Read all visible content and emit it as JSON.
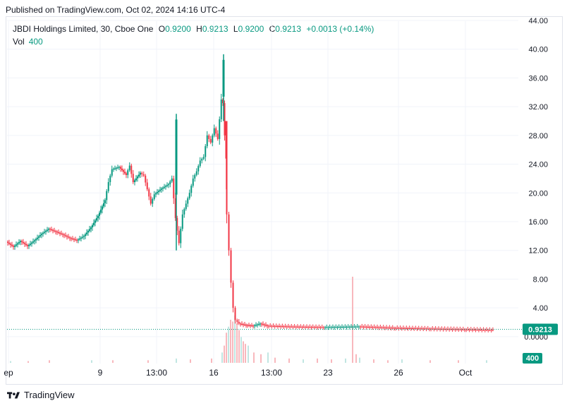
{
  "header": {
    "published": "Published on TradingView.com, Oct 02, 2024 14:16 UTC-4"
  },
  "legend": {
    "symbol": "JBDI Holdings Limited, 30, Cboe One",
    "open_label": "O",
    "open": "0.9200",
    "high_label": "H",
    "high": "0.9213",
    "low_label": "L",
    "low": "0.9200",
    "close_label": "C",
    "close": "0.9213",
    "change": "+0.0013 (+0.14%)",
    "vol_label": "Vol",
    "vol_value": "400"
  },
  "colors": {
    "up": "#089981",
    "down": "#f23645",
    "vol_up": "#b2dfdb",
    "vol_down": "#f7a7ad",
    "grid": "#f0f3fa"
  },
  "chart_data": {
    "type": "candlestick",
    "y_ticks": [
      "44.00",
      "40.00",
      "36.00",
      "32.00",
      "28.00",
      "24.00",
      "20.00",
      "16.00",
      "12.00",
      "8.00",
      "4.00",
      "0.0000"
    ],
    "ylim": [
      -1.0,
      44.0
    ],
    "x_ticks": [
      "ep",
      "9",
      "13:00",
      "16",
      "13:00",
      "23",
      "26",
      "Oct"
    ],
    "last_price_label": "0.9213",
    "volume_label": "400",
    "price_path": [
      [
        0,
        13.2
      ],
      [
        10,
        12.5
      ],
      [
        20,
        13.3
      ],
      [
        30,
        12.6
      ],
      [
        40,
        13.4
      ],
      [
        50,
        14.3
      ],
      [
        60,
        15.0
      ],
      [
        70,
        14.6
      ],
      [
        80,
        14.2
      ],
      [
        90,
        13.7
      ],
      [
        100,
        13.4
      ],
      [
        110,
        14.0
      ],
      [
        120,
        15.2
      ],
      [
        130,
        16.8
      ],
      [
        140,
        19.0
      ],
      [
        145,
        21.5
      ],
      [
        150,
        23.3
      ],
      [
        160,
        23.6
      ],
      [
        170,
        22.5
      ],
      [
        175,
        23.8
      ],
      [
        180,
        21.5
      ],
      [
        190,
        22.8
      ],
      [
        195,
        22.4
      ],
      [
        200,
        20.5
      ],
      [
        205,
        18.5
      ],
      [
        210,
        19.8
      ],
      [
        220,
        20.6
      ],
      [
        230,
        21.2
      ],
      [
        235,
        22.0
      ],
      [
        240,
        16.5
      ],
      [
        245,
        13.0
      ],
      [
        250,
        17.0
      ],
      [
        255,
        18.5
      ],
      [
        260,
        20.0
      ],
      [
        265,
        22.0
      ],
      [
        270,
        23.0
      ],
      [
        275,
        24.5
      ],
      [
        280,
        25.0
      ],
      [
        285,
        28.0
      ],
      [
        290,
        27.0
      ],
      [
        295,
        29.0
      ],
      [
        300,
        27.5
      ],
      [
        305,
        33.0
      ],
      [
        307,
        32.5
      ],
      [
        310,
        28.0
      ],
      [
        313,
        17.0
      ],
      [
        316,
        12.0
      ],
      [
        319,
        7.5
      ],
      [
        322,
        4.0
      ],
      [
        325,
        2.3
      ],
      [
        330,
        1.8
      ],
      [
        340,
        1.6
      ],
      [
        350,
        1.5
      ],
      [
        360,
        1.8
      ],
      [
        370,
        1.5
      ],
      [
        400,
        1.4
      ],
      [
        450,
        1.3
      ],
      [
        500,
        1.4
      ],
      [
        550,
        1.2
      ],
      [
        600,
        1.1
      ],
      [
        650,
        1.0
      ],
      [
        690,
        0.92
      ]
    ],
    "spikes": [
      {
        "x": 240,
        "high": 31.0,
        "low": 12.0
      },
      {
        "x": 307,
        "high": 39.3,
        "low": 30.0
      },
      {
        "x": 311,
        "high": 30.0,
        "low": 20.5
      }
    ],
    "volume": [
      [
        5,
        0.02
      ],
      [
        30,
        0.02
      ],
      [
        60,
        0.03
      ],
      [
        120,
        0.03
      ],
      [
        150,
        0.03
      ],
      [
        200,
        0.03
      ],
      [
        240,
        0.05
      ],
      [
        260,
        0.04
      ],
      [
        290,
        0.05
      ],
      [
        305,
        0.12
      ],
      [
        308,
        0.2
      ],
      [
        311,
        0.35
      ],
      [
        314,
        0.42
      ],
      [
        317,
        0.5
      ],
      [
        320,
        0.48
      ],
      [
        323,
        0.55
      ],
      [
        326,
        0.45
      ],
      [
        329,
        0.38
      ],
      [
        332,
        0.3
      ],
      [
        335,
        0.25
      ],
      [
        338,
        0.22
      ],
      [
        342,
        0.2
      ],
      [
        350,
        0.12
      ],
      [
        360,
        0.1
      ],
      [
        370,
        0.12
      ],
      [
        380,
        0.06
      ],
      [
        400,
        0.05
      ],
      [
        420,
        0.04
      ],
      [
        440,
        0.05
      ],
      [
        460,
        0.04
      ],
      [
        480,
        0.05
      ],
      [
        490,
        1.0
      ],
      [
        495,
        0.1
      ],
      [
        500,
        0.06
      ],
      [
        520,
        0.04
      ],
      [
        540,
        0.03
      ],
      [
        560,
        0.04
      ],
      [
        600,
        0.03
      ],
      [
        640,
        0.03
      ],
      [
        680,
        0.03
      ]
    ]
  }
}
